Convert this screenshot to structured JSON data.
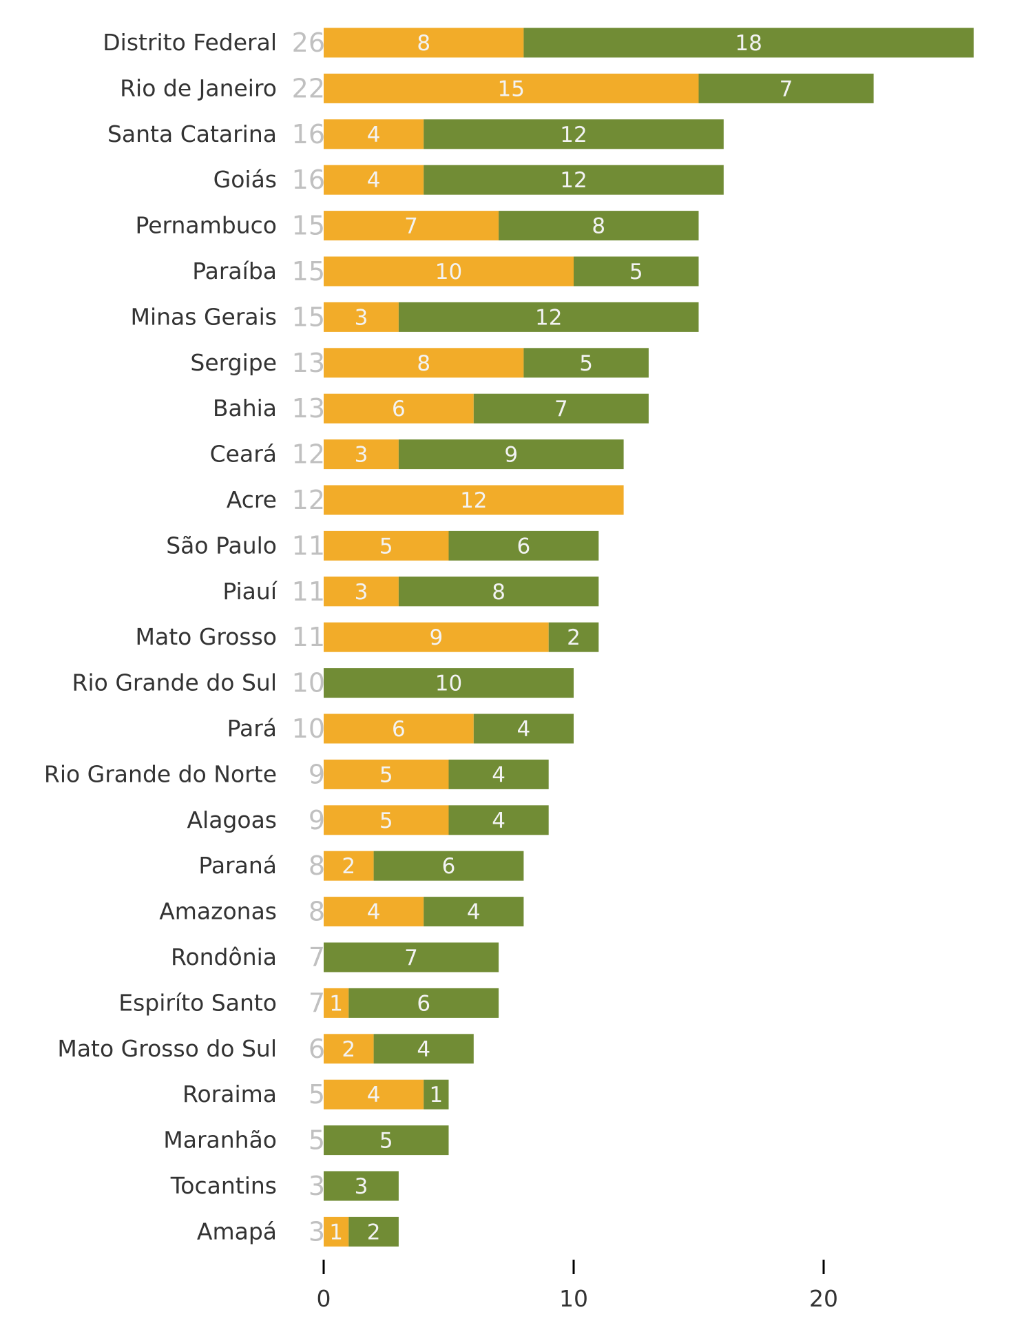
{
  "chart_data": {
    "type": "bar",
    "orientation": "horizontal",
    "stacked": true,
    "title": "",
    "xlabel": "",
    "ylabel": "",
    "xlim": [
      0,
      26
    ],
    "xticks": [
      0,
      10,
      20
    ],
    "grid": false,
    "legend": "none",
    "colors": [
      "#F2AC29",
      "#718C35"
    ],
    "total_color": "#C0C0C0",
    "categories": [
      "Distrito Federal",
      "Rio de Janeiro",
      "Santa Catarina",
      "Goiás",
      "Pernambuco",
      "Paraíba",
      "Minas Gerais",
      "Sergipe",
      "Bahia",
      "Ceará",
      "Acre",
      "São Paulo",
      "Piauí",
      "Mato Grosso",
      "Rio Grande do Sul",
      "Pará",
      "Rio Grande do Norte",
      "Alagoas",
      "Paraná",
      "Amazonas",
      "Rondônia",
      "Espiríto Santo",
      "Mato Grosso do Sul",
      "Roraima",
      "Maranhão",
      "Tocantins",
      "Amapá"
    ],
    "totals": [
      26,
      22,
      16,
      16,
      15,
      15,
      15,
      13,
      13,
      12,
      12,
      11,
      11,
      11,
      10,
      10,
      9,
      9,
      8,
      8,
      7,
      7,
      6,
      5,
      5,
      3,
      3
    ],
    "series": [
      {
        "values": [
          8,
          15,
          4,
          4,
          7,
          10,
          3,
          8,
          6,
          3,
          12,
          5,
          3,
          9,
          0,
          6,
          5,
          5,
          2,
          4,
          0,
          1,
          2,
          4,
          0,
          0,
          1
        ]
      },
      {
        "values": [
          18,
          7,
          12,
          12,
          8,
          5,
          12,
          5,
          7,
          9,
          0,
          6,
          8,
          2,
          10,
          4,
          4,
          4,
          6,
          4,
          7,
          6,
          4,
          1,
          5,
          3,
          2
        ]
      }
    ]
  }
}
